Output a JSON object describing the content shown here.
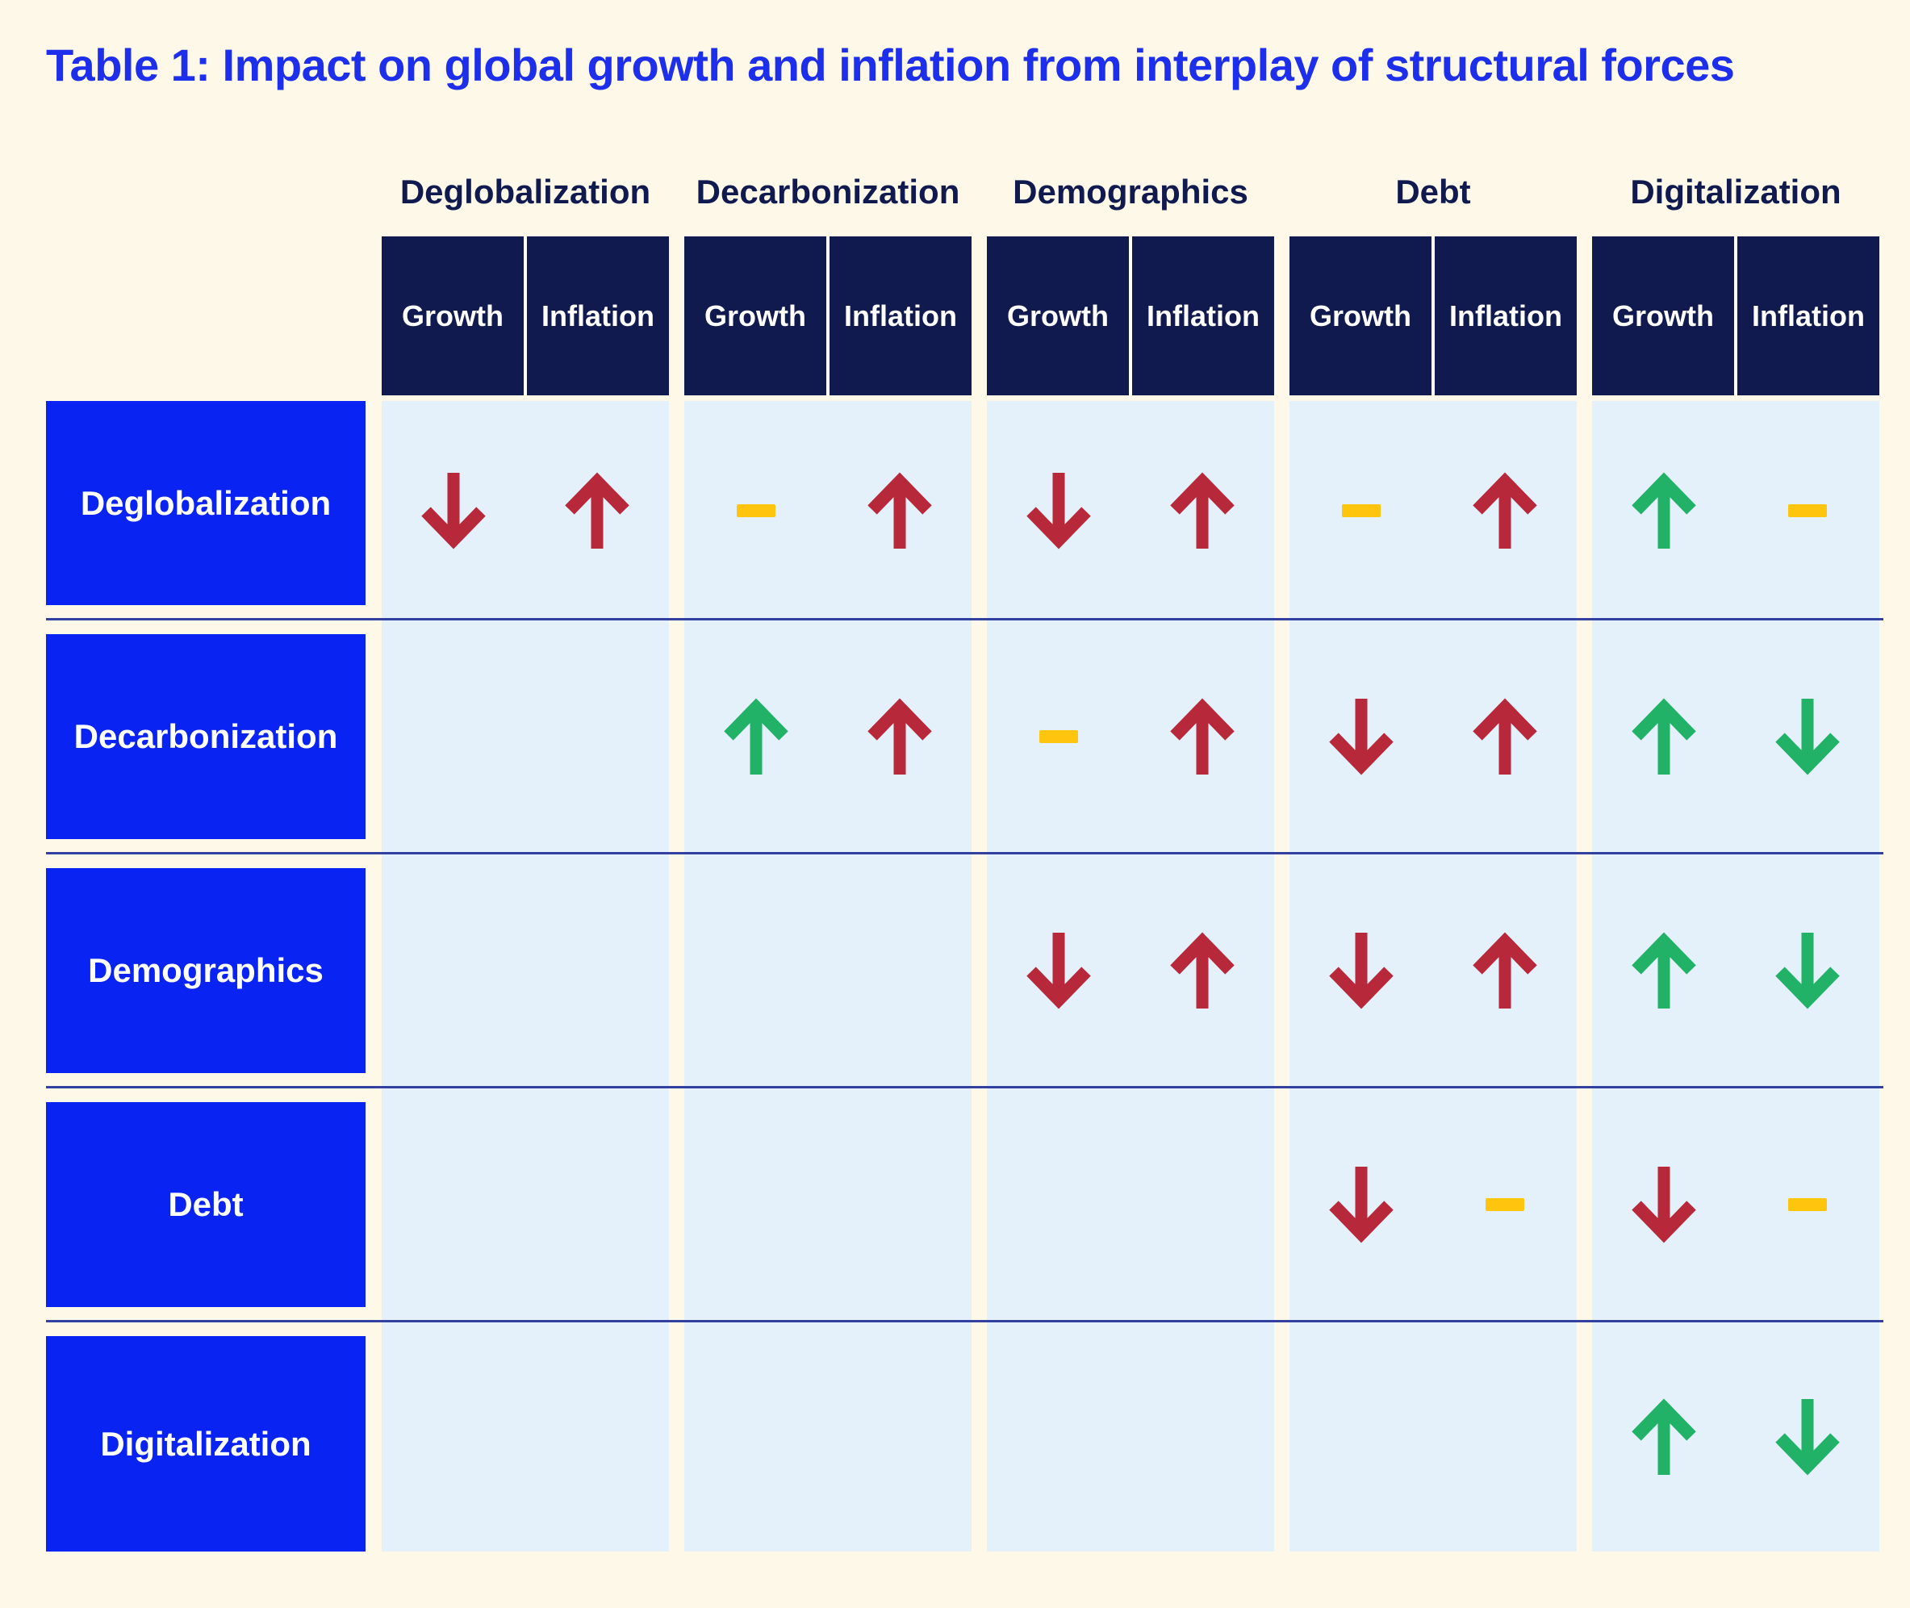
{
  "chart_data": {
    "type": "table",
    "title": "Table 1: Impact on global growth and inflation from interplay of structural forces",
    "column_groups": [
      "Deglobalization",
      "Decarbonization",
      "Demographics",
      "Debt",
      "Digitalization"
    ],
    "sub_columns": [
      "Growth",
      "Inflation"
    ],
    "row_labels": [
      "Deglobalization",
      "Decarbonization",
      "Demographics",
      "Debt",
      "Digitalization"
    ],
    "cell_code_legend": {
      "red-up": "red upward arrow (increase)",
      "red-down": "red downward arrow (decrease)",
      "green-up": "green upward arrow (increase)",
      "green-down": "green downward arrow (decrease)",
      "neutral": "yellow dash (little or no change)",
      "null": "empty cell"
    },
    "cells": [
      [
        [
          "red-down",
          "red-up"
        ],
        [
          "neutral",
          "red-up"
        ],
        [
          "red-down",
          "red-up"
        ],
        [
          "neutral",
          "red-up"
        ],
        [
          "green-up",
          "neutral"
        ]
      ],
      [
        [
          null,
          null
        ],
        [
          "green-up",
          "red-up"
        ],
        [
          "neutral",
          "red-up"
        ],
        [
          "red-down",
          "red-up"
        ],
        [
          "green-up",
          "green-down"
        ]
      ],
      [
        [
          null,
          null
        ],
        [
          null,
          null
        ],
        [
          "red-down",
          "red-up"
        ],
        [
          "red-down",
          "red-up"
        ],
        [
          "green-up",
          "green-down"
        ]
      ],
      [
        [
          null,
          null
        ],
        [
          null,
          null
        ],
        [
          null,
          null
        ],
        [
          "red-down",
          "neutral"
        ],
        [
          "red-down",
          "neutral"
        ]
      ],
      [
        [
          null,
          null
        ],
        [
          null,
          null
        ],
        [
          null,
          null
        ],
        [
          null,
          null
        ],
        [
          "green-up",
          "green-down"
        ]
      ]
    ],
    "colors": {
      "red": "#B7283A",
      "green": "#21B167",
      "neutral": "#FFC40D",
      "title_blue": "#1D2FEA",
      "row_label_blue": "#0823F2",
      "header_navy": "#101A4F",
      "cell_blue": "#E4F1FB",
      "background_cream": "#FDF8E7",
      "separator_blue": "#32409F"
    }
  }
}
